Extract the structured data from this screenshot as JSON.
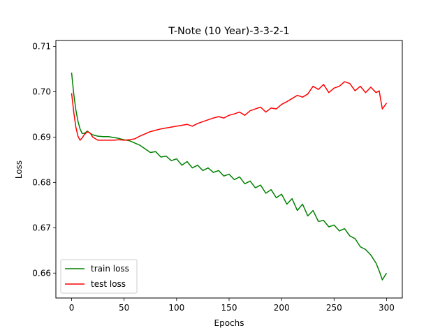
{
  "chart_data": {
    "type": "line",
    "title": "T-Note (10 Year)-3-3-2-1",
    "xlabel": "Epochs",
    "ylabel": "Loss",
    "xlim": [
      -15,
      315
    ],
    "ylim": [
      0.6545,
      0.7113
    ],
    "xticks": [
      0,
      50,
      100,
      150,
      200,
      250,
      300
    ],
    "yticks": [
      0.66,
      0.67,
      0.68,
      0.69,
      0.7,
      0.71
    ],
    "ytick_labels": [
      "0.66",
      "0.67",
      "0.68",
      "0.69",
      "0.70",
      "0.71"
    ],
    "legend_position": "lower-left",
    "grid": false,
    "series": [
      {
        "name": "train loss",
        "color": "#008000",
        "x": [
          0,
          2,
          4,
          6,
          8,
          10,
          12,
          15,
          18,
          20,
          25,
          30,
          35,
          40,
          45,
          50,
          55,
          60,
          65,
          70,
          75,
          80,
          85,
          90,
          95,
          100,
          105,
          110,
          115,
          120,
          125,
          130,
          135,
          140,
          145,
          150,
          155,
          160,
          165,
          170,
          175,
          180,
          185,
          190,
          195,
          200,
          205,
          210,
          215,
          220,
          225,
          230,
          235,
          240,
          245,
          250,
          255,
          260,
          265,
          270,
          275,
          280,
          285,
          290,
          293,
          296,
          300
        ],
        "y": [
          0.7042,
          0.6995,
          0.696,
          0.6935,
          0.6918,
          0.6908,
          0.6908,
          0.6913,
          0.6908,
          0.6905,
          0.6902,
          0.6901,
          0.6901,
          0.6899,
          0.6897,
          0.6894,
          0.6892,
          0.6887,
          0.6882,
          0.6874,
          0.6866,
          0.6868,
          0.6856,
          0.6858,
          0.6848,
          0.6852,
          0.6838,
          0.6846,
          0.6832,
          0.6838,
          0.6826,
          0.6832,
          0.6822,
          0.6826,
          0.6814,
          0.6818,
          0.6806,
          0.6812,
          0.6797,
          0.6803,
          0.6788,
          0.6794,
          0.6776,
          0.6784,
          0.6766,
          0.6774,
          0.6752,
          0.6764,
          0.6738,
          0.6752,
          0.6726,
          0.6738,
          0.6714,
          0.6716,
          0.6702,
          0.6706,
          0.6693,
          0.6698,
          0.6682,
          0.6676,
          0.6658,
          0.6652,
          0.664,
          0.6622,
          0.6605,
          0.6585,
          0.66
        ]
      },
      {
        "name": "test loss",
        "color": "#ff0000",
        "x": [
          0,
          2,
          4,
          6,
          8,
          10,
          12,
          15,
          18,
          20,
          25,
          30,
          35,
          40,
          45,
          50,
          55,
          60,
          65,
          70,
          75,
          80,
          85,
          90,
          95,
          100,
          105,
          110,
          115,
          120,
          125,
          130,
          135,
          140,
          145,
          150,
          155,
          160,
          165,
          170,
          175,
          180,
          185,
          190,
          195,
          200,
          205,
          210,
          215,
          220,
          225,
          230,
          235,
          240,
          245,
          250,
          255,
          260,
          265,
          270,
          275,
          280,
          285,
          290,
          293,
          296,
          300
        ],
        "y": [
          0.6997,
          0.6955,
          0.6922,
          0.6902,
          0.6893,
          0.6898,
          0.6905,
          0.6912,
          0.6908,
          0.69,
          0.6893,
          0.6893,
          0.6893,
          0.6893,
          0.6894,
          0.6893,
          0.6894,
          0.6896,
          0.6902,
          0.6907,
          0.6912,
          0.6915,
          0.6918,
          0.692,
          0.6922,
          0.6924,
          0.6926,
          0.6928,
          0.6924,
          0.693,
          0.6934,
          0.6938,
          0.6942,
          0.6945,
          0.6942,
          0.6948,
          0.6951,
          0.6955,
          0.6948,
          0.6958,
          0.6962,
          0.6966,
          0.6955,
          0.6964,
          0.6962,
          0.6972,
          0.6978,
          0.6985,
          0.6992,
          0.6988,
          0.6995,
          0.7012,
          0.7005,
          0.7016,
          0.6998,
          0.7008,
          0.7012,
          0.7022,
          0.7018,
          0.7002,
          0.7012,
          0.6998,
          0.701,
          0.6998,
          0.7002,
          0.6962,
          0.6975
        ]
      }
    ]
  }
}
